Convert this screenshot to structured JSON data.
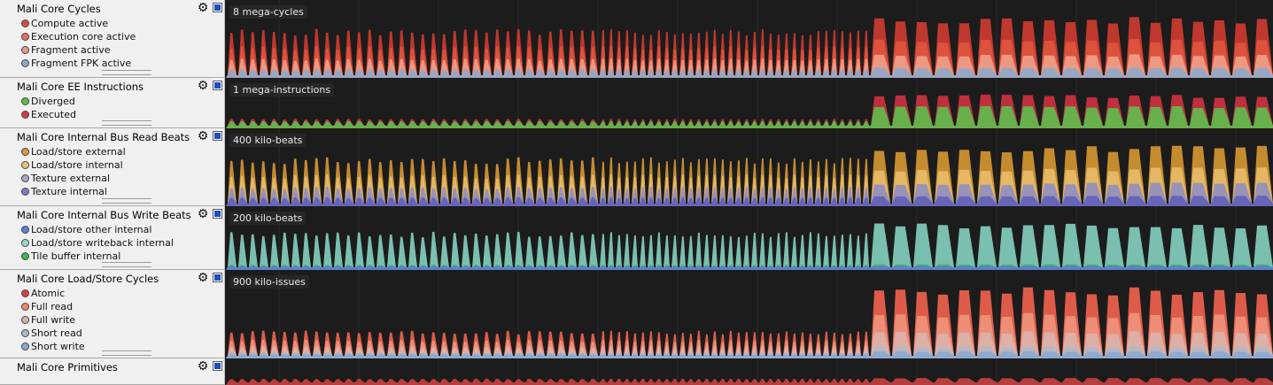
{
  "rows": [
    {
      "title": "Mali Core Cycles",
      "scale": "8 mega-cycles",
      "legend": [
        {
          "label": "Compute active",
          "color": "#d94b3e"
        },
        {
          "label": "Execution core active",
          "color": "#e6705a"
        },
        {
          "label": "Fragment active",
          "color": "#e79a8c"
        },
        {
          "label": "Fragment FPK active",
          "color": "#8fa7c8"
        }
      ],
      "series_colors": [
        "#c83a2f",
        "#e0553f",
        "#f0a08a",
        "#8fa7c8"
      ]
    },
    {
      "title": "Mali Core EE Instructions",
      "scale": "1 mega-instructions",
      "legend": [
        {
          "label": "Diverged",
          "color": "#5dbf4c"
        },
        {
          "label": "Executed",
          "color": "#d03a4a"
        }
      ],
      "series_colors": [
        "#c8303f",
        "#5dbf4c"
      ]
    },
    {
      "title": "Mali Core Internal Bus Read Beats",
      "scale": "400 kilo-beats",
      "legend": [
        {
          "label": "Load/store external",
          "color": "#d79a3a"
        },
        {
          "label": "Load/store internal",
          "color": "#e9c27a"
        },
        {
          "label": "Texture external",
          "color": "#a8a8c0"
        },
        {
          "label": "Texture internal",
          "color": "#7a7ac8"
        }
      ],
      "series_colors": [
        "#cf9230",
        "#e7bc6a",
        "#8f8fc0",
        "#6060b8"
      ]
    },
    {
      "title": "Mali Core Internal Bus Write Beats",
      "scale": "200 kilo-beats",
      "legend": [
        {
          "label": "Load/store other internal",
          "color": "#5a7ed8"
        },
        {
          "label": "Load/store writeback internal",
          "color": "#9fd7c6"
        },
        {
          "label": "Tile buffer internal",
          "color": "#43b84a"
        }
      ],
      "series_colors": [
        "#7fc8b8",
        "#43b84a",
        "#5a7ed8"
      ]
    },
    {
      "title": "Mali Core Load/Store Cycles",
      "scale": "900 kilo-issues",
      "legend": [
        {
          "label": "Atomic",
          "color": "#d94040"
        },
        {
          "label": "Full read",
          "color": "#ee8a72"
        },
        {
          "label": "Full write",
          "color": "#d8b0aa"
        },
        {
          "label": "Short read",
          "color": "#b0b8c8"
        },
        {
          "label": "Short write",
          "color": "#8aa8d0"
        }
      ],
      "series_colors": [
        "#e8604c",
        "#f0947c",
        "#d9b2ac",
        "#b0b8c8",
        "#8aa8d0"
      ]
    },
    {
      "title": "Mali Core Primitives",
      "scale": "",
      "legend": [],
      "series_colors": [
        "#c04040"
      ]
    }
  ]
}
